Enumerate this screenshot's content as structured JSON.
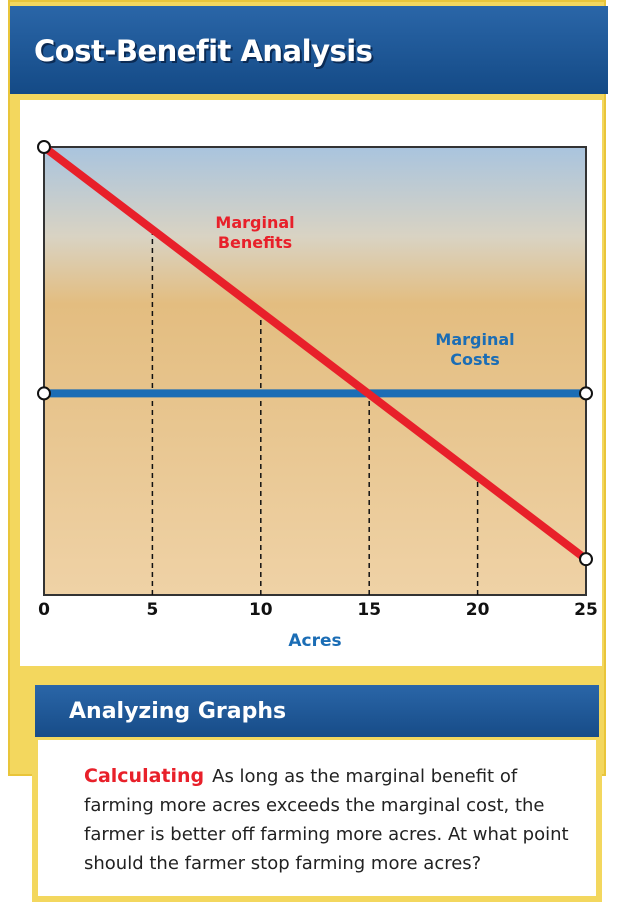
{
  "header": {
    "title": "Cost-Benefit Analysis"
  },
  "chart_data": {
    "type": "line",
    "x": [
      0,
      25
    ],
    "series": [
      {
        "name": "Marginal Benefits",
        "color": "#e8202a",
        "values": [
          100,
          8
        ]
      },
      {
        "name": "Marginal Costs",
        "color": "#1b6db5",
        "values": [
          45,
          45
        ]
      }
    ],
    "xlabel": "Acres",
    "xlim": [
      0,
      25
    ],
    "xticks": [
      0,
      5,
      10,
      15,
      20,
      25
    ],
    "ylim": [
      0,
      100
    ]
  },
  "analysis": {
    "title": "Analyzing Graphs",
    "label": "Calculating",
    "text": "As long as the marginal benefit of farming more acres exceeds the marginal cost, the farmer is better off farming more acres.  At what point should the farmer stop farming more acres?"
  }
}
